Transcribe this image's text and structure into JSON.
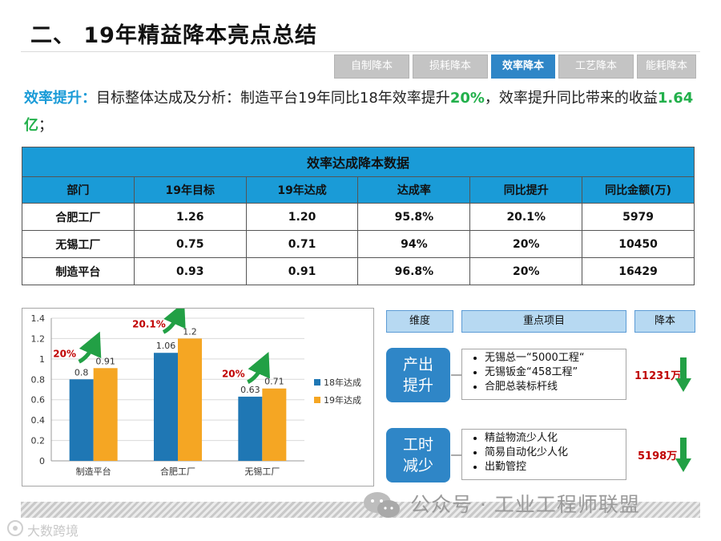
{
  "title": "二、 19年精益降本亮点总结",
  "tabs": [
    {
      "label": "自制降本",
      "active": false
    },
    {
      "label": "损耗降本",
      "active": false
    },
    {
      "label": "效率降本",
      "active": true
    },
    {
      "label": "工艺降本",
      "active": false
    },
    {
      "label": "能耗降本",
      "active": false
    }
  ],
  "summary": {
    "label": "效率提升：",
    "text1": "目标整体达成及分析：制造平台19年同比18年效率提升",
    "hl1": "20%",
    "text2": "，效率提升同比带来的收益",
    "hl2": "1.64亿",
    "text3": "；"
  },
  "table": {
    "caption": "效率达成降本数据",
    "headers": [
      "部门",
      "19年目标",
      "19年达成",
      "达成率",
      "同比提升",
      "同比金额(万)"
    ],
    "rows": [
      [
        "合肥工厂",
        "1.26",
        "1.20",
        "95.8%",
        "20.1%",
        "5979"
      ],
      [
        "无锡工厂",
        "0.75",
        "0.71",
        "94%",
        "20%",
        "10450"
      ],
      [
        "制造平台",
        "0.93",
        "0.91",
        "96.8%",
        "20%",
        "16429"
      ]
    ]
  },
  "chart_data": {
    "type": "bar",
    "categories": [
      "制造平台",
      "合肥工厂",
      "无锡工厂"
    ],
    "series": [
      {
        "name": "18年达成",
        "values": [
          0.8,
          1.06,
          0.63
        ],
        "labels": [
          "0.8",
          "1.06",
          "0.63"
        ],
        "color": "#1f77b4"
      },
      {
        "name": "19年达成",
        "values": [
          0.91,
          1.2,
          0.71
        ],
        "labels": [
          "0.91",
          "1.2",
          "0.71"
        ],
        "color": "#f5a623"
      }
    ],
    "growth_labels": [
      "20%",
      "20.1%",
      "20%"
    ],
    "ylim": [
      0,
      1.4
    ],
    "yticks": [
      "0",
      "0.2",
      "0.4",
      "0.6",
      "0.8",
      "1",
      "1.2",
      "1.4"
    ],
    "grid": true,
    "legend_position": "right",
    "colors": {
      "growth_label": "#c00000",
      "arrow": "#22a045"
    }
  },
  "dimension_table": {
    "headers": [
      "维度",
      "重点项目",
      "降本"
    ],
    "rows": [
      {
        "dimension": [
          "产出",
          "提升"
        ],
        "items": [
          "无锡总一“5000工程“",
          "无锡钣金“458工程”",
          "合肥总装标杆线"
        ],
        "amount": "11231万"
      },
      {
        "dimension": [
          "工时",
          "减少"
        ],
        "items": [
          "精益物流少人化",
          "简易自动化少人化",
          "出勤管控"
        ],
        "amount": "5198万"
      }
    ]
  },
  "watermark": "公众号 · 工业工程师联盟",
  "corner_mark": "大数跨境",
  "colors": {
    "accent": "#1a9bd7",
    "tab_active": "#2f86c7",
    "highlight": "#22b04b",
    "red": "#c00000",
    "green_arrow": "#22a045"
  }
}
